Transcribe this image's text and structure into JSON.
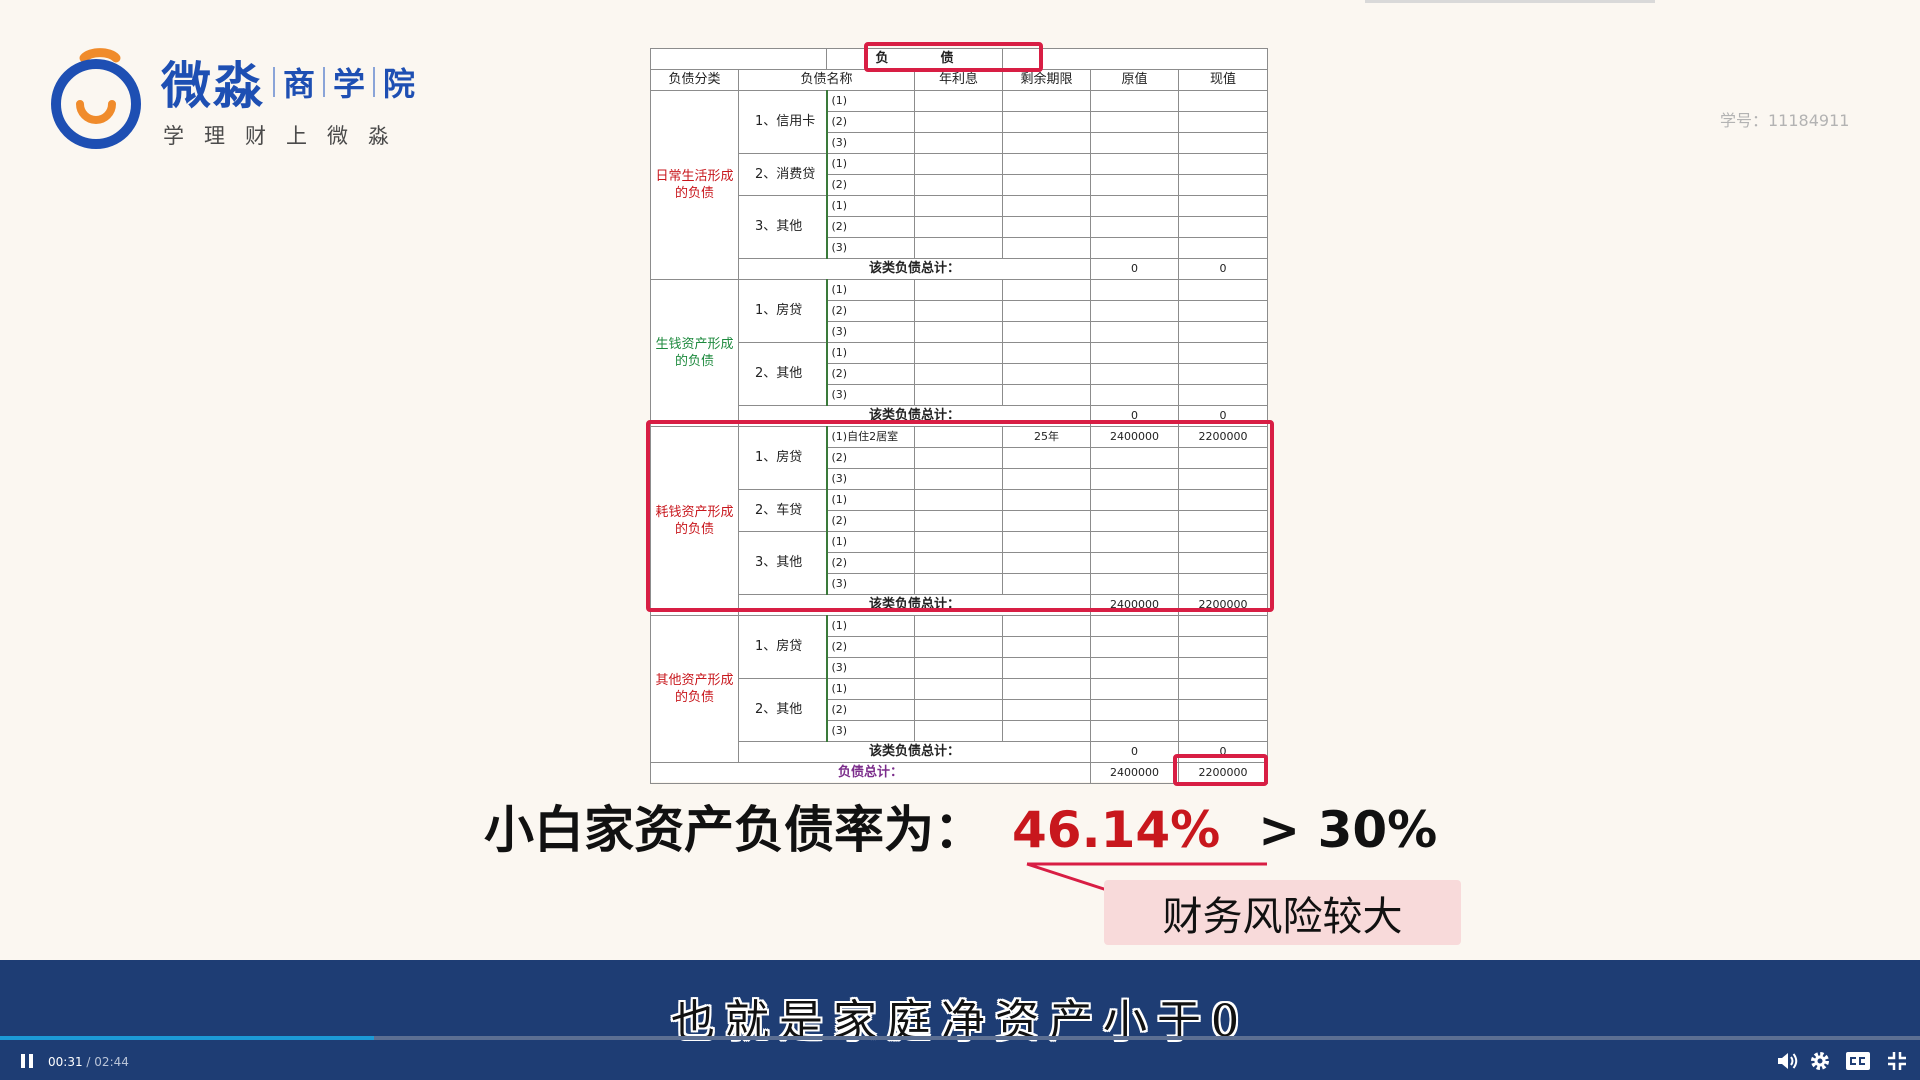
{
  "logo": {
    "brand": "微淼",
    "segments": [
      "商",
      "学",
      "院"
    ],
    "slogan": "学理财上微淼"
  },
  "student_id": "学号：11184911",
  "sheet": {
    "title": "负　　　　债",
    "headers": [
      "负债分类",
      "负债名称",
      "年利息",
      "剩余期限",
      "原值",
      "现值"
    ],
    "categories": [
      {
        "name": "日常生活形成的负债",
        "color": "#c8171d",
        "subs": [
          {
            "name": "1、信用卡",
            "items": [
              "(1)",
              "(2)",
              "(3)"
            ]
          },
          {
            "name": "2、消费贷",
            "items": [
              "(1)",
              "(2)"
            ]
          },
          {
            "name": "3、其他",
            "items": [
              "(1)",
              "(2)",
              "(3)"
            ]
          }
        ],
        "subtotal": {
          "label": "该类负债总计：",
          "original": "0",
          "present": "0"
        }
      },
      {
        "name": "生钱资产形成的负债",
        "color": "#1e8a3e",
        "subs": [
          {
            "name": "1、房贷",
            "items": [
              "(1)",
              "(2)",
              "(3)"
            ]
          },
          {
            "name": "2、其他",
            "items": [
              "(1)",
              "(2)",
              "(3)"
            ]
          }
        ],
        "subtotal": {
          "label": "该类负债总计：",
          "original": "0",
          "present": "0"
        }
      },
      {
        "name": "耗钱资产形成的负债",
        "color": "#c8171d",
        "subs": [
          {
            "name": "1、房贷",
            "items": [
              "(1)自住2居室",
              "(2)",
              "(3)"
            ]
          },
          {
            "name": "2、车贷",
            "items": [
              "(1)",
              "(2)"
            ]
          },
          {
            "name": "3、其他",
            "items": [
              "(1)",
              "(2)",
              "(3)"
            ]
          }
        ],
        "first_row": {
          "term": "25年",
          "original": "2400000",
          "present": "2200000"
        },
        "subtotal": {
          "label": "该类负债总计：",
          "original": "2400000",
          "present": "2200000"
        }
      },
      {
        "name": "其他资产形成的负债",
        "color": "#c8171d",
        "subs": [
          {
            "name": "1、房贷",
            "items": [
              "(1)",
              "(2)",
              "(3)"
            ]
          },
          {
            "name": "2、其他",
            "items": [
              "(1)",
              "(2)",
              "(3)"
            ]
          }
        ],
        "subtotal": {
          "label": "该类负债总计：",
          "original": "0",
          "present": "0"
        }
      }
    ],
    "total": {
      "label": "负债总计：",
      "original": "2400000",
      "present": "2200000"
    }
  },
  "summary": {
    "label": "小白家资产负债率为：",
    "ratio": "46.14%",
    "compare": "> 30%",
    "risk": "财务风险较大",
    "highlight_color": "#d81e44"
  },
  "player": {
    "subtitle": "也就是家庭净资产小于0",
    "current_time": "00:31",
    "separator": "/",
    "duration": "02:44",
    "progress": 0.195,
    "accent": "#1c9ad6"
  }
}
